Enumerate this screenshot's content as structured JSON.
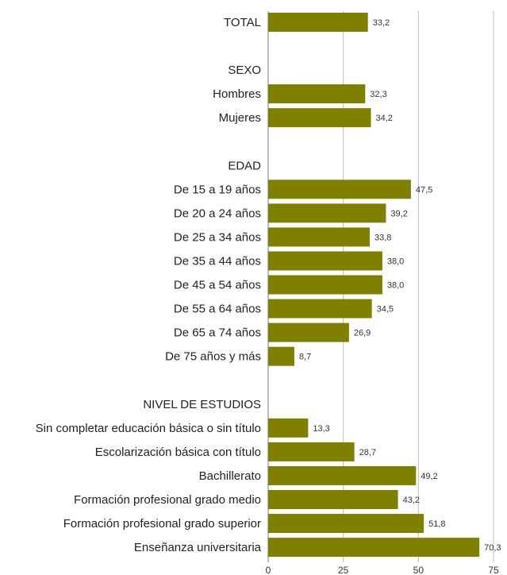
{
  "chart_data": {
    "type": "bar",
    "orientation": "horizontal",
    "bar_color": "#808000",
    "grid": true,
    "xlim": [
      0,
      75
    ],
    "x_ticks": [
      "0",
      "25",
      "50",
      "75"
    ],
    "rows": [
      {
        "label": "TOTAL",
        "value": 33.2,
        "value_label": "33,2"
      },
      {
        "label": "",
        "value": null,
        "value_label": ""
      },
      {
        "label": "SEXO",
        "value": null,
        "value_label": ""
      },
      {
        "label": "Hombres",
        "value": 32.3,
        "value_label": "32,3"
      },
      {
        "label": "Mujeres",
        "value": 34.2,
        "value_label": "34,2"
      },
      {
        "label": "",
        "value": null,
        "value_label": ""
      },
      {
        "label": "EDAD",
        "value": null,
        "value_label": ""
      },
      {
        "label": "De 15 a 19 años",
        "value": 47.5,
        "value_label": "47,5"
      },
      {
        "label": "De 20 a 24 años",
        "value": 39.2,
        "value_label": "39,2"
      },
      {
        "label": "De 25 a 34 años",
        "value": 33.8,
        "value_label": "33,8"
      },
      {
        "label": "De 35 a 44 años",
        "value": 38.0,
        "value_label": "38,0"
      },
      {
        "label": "De 45 a 54 años",
        "value": 38.0,
        "value_label": "38,0"
      },
      {
        "label": "De 55 a 64 años",
        "value": 34.5,
        "value_label": "34,5"
      },
      {
        "label": "De 65 a 74 años",
        "value": 26.9,
        "value_label": "26,9"
      },
      {
        "label": "De 75 años y más",
        "value": 8.7,
        "value_label": "8,7"
      },
      {
        "label": "",
        "value": null,
        "value_label": ""
      },
      {
        "label": "NIVEL DE ESTUDIOS",
        "value": null,
        "value_label": ""
      },
      {
        "label": "Sin completar educación básica o sin título",
        "value": 13.3,
        "value_label": "13,3"
      },
      {
        "label": "Escolarización básica con título",
        "value": 28.7,
        "value_label": "28,7"
      },
      {
        "label": "Bachillerato",
        "value": 49.2,
        "value_label": "49,2"
      },
      {
        "label": "Formación profesional grado medio",
        "value": 43.2,
        "value_label": "43,2"
      },
      {
        "label": "Formación profesional grado superior",
        "value": 51.8,
        "value_label": "51,8"
      },
      {
        "label": "Enseñanza universitaria",
        "value": 70.3,
        "value_label": "70,3"
      }
    ]
  }
}
